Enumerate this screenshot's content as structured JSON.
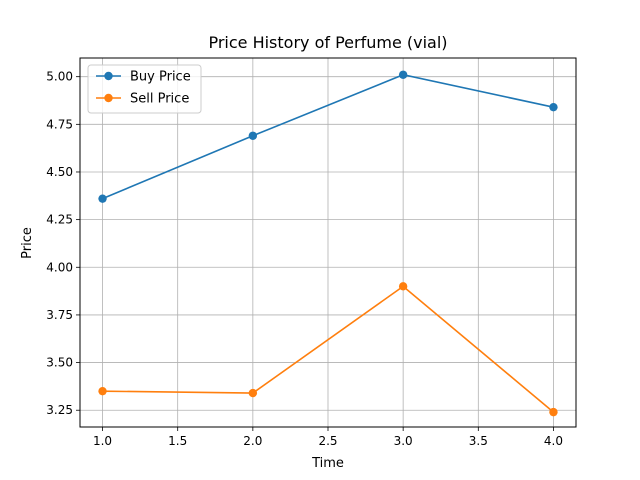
{
  "chart_data": {
    "type": "line",
    "title": "Price History of Perfume (vial)",
    "xlabel": "Time",
    "ylabel": "Price",
    "x": [
      1.0,
      2.0,
      3.0,
      4.0
    ],
    "xlim": [
      0.85,
      4.15
    ],
    "ylim": [
      3.162,
      5.098
    ],
    "xticks": [
      1.0,
      1.5,
      2.0,
      2.5,
      3.0,
      3.5,
      4.0
    ],
    "xtick_labels": [
      "1.0",
      "1.5",
      "2.0",
      "2.5",
      "3.0",
      "3.5",
      "4.0"
    ],
    "yticks": [
      3.25,
      3.5,
      3.75,
      4.0,
      4.25,
      4.5,
      4.75,
      5.0
    ],
    "ytick_labels": [
      "3.25",
      "3.50",
      "3.75",
      "4.00",
      "4.25",
      "4.50",
      "4.75",
      "5.00"
    ],
    "grid": true,
    "legend_position": "top-left",
    "series": [
      {
        "name": "Buy Price",
        "color": "#1f77b4",
        "marker": "circle",
        "values": [
          4.36,
          4.69,
          5.01,
          4.84
        ]
      },
      {
        "name": "Sell Price",
        "color": "#ff7f0e",
        "marker": "circle",
        "values": [
          3.35,
          3.34,
          3.9,
          3.24
        ]
      }
    ]
  }
}
